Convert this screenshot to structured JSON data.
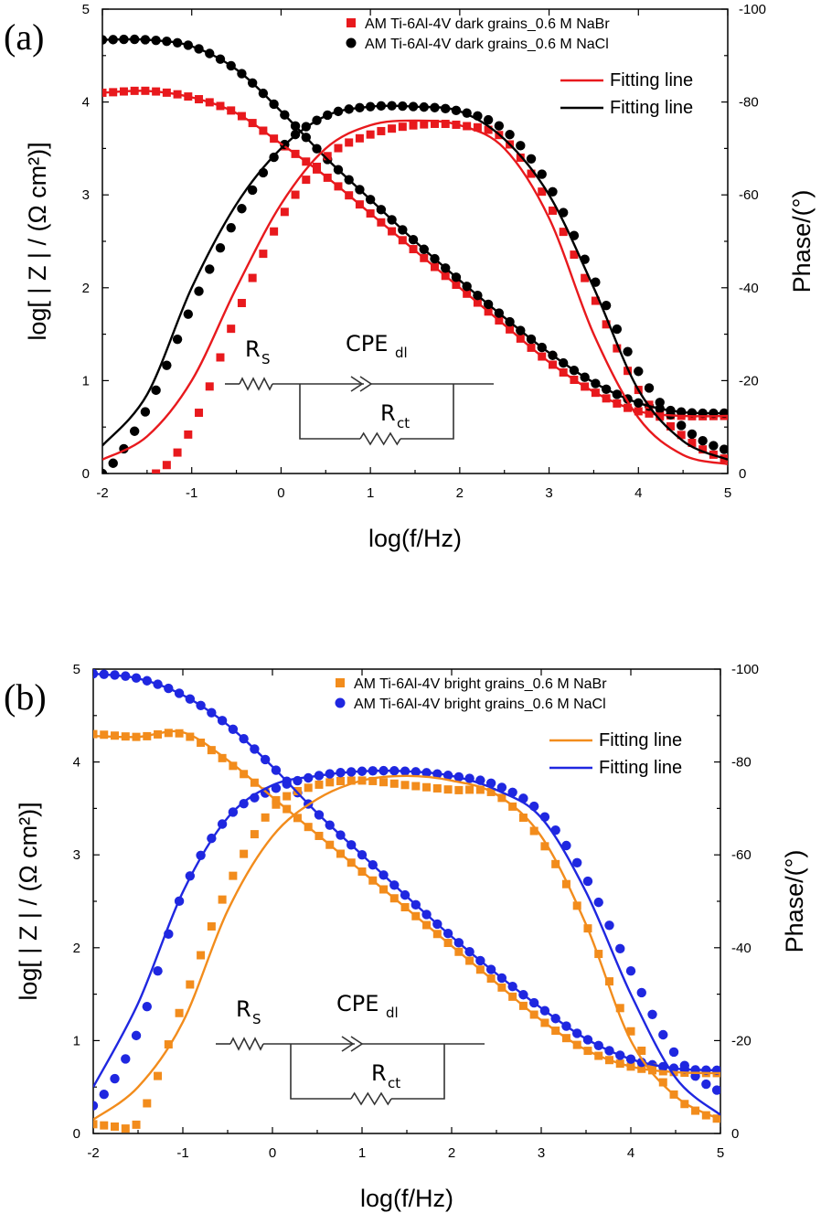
{
  "chart_data": [
    {
      "panel_label": "(a)",
      "type": "scatter",
      "xlabel": "log(f/Hz)",
      "ylabel_left": "log[ | Z | / (Ω cm²)]",
      "ylabel_right": "Phase/(°)",
      "xlim": [
        -2,
        5
      ],
      "ylim_left": [
        0,
        5
      ],
      "ylim_right": [
        0,
        -100
      ],
      "x_ticks": [
        "-2",
        "-1",
        "0",
        "1",
        "2",
        "3",
        "4",
        "5"
      ],
      "y_left_ticks": [
        "0",
        "1",
        "2",
        "3",
        "4",
        "5"
      ],
      "y_right_ticks": [
        "0",
        "-20",
        "-40",
        "-60",
        "-80",
        "-100"
      ],
      "legend": [
        {
          "label": "AM Ti-6Al-4V dark grains_0.6 M NaBr",
          "marker": "square",
          "color": "#e8191d"
        },
        {
          "label": "AM Ti-6Al-4V dark grains_0.6 M NaCl",
          "marker": "circle",
          "color": "#000000"
        },
        {
          "label": "Fitting line",
          "marker": "line",
          "color": "#e8191d"
        },
        {
          "label": "Fitting line",
          "marker": "line",
          "color": "#000000"
        }
      ],
      "series": [
        {
          "name": "NaBr |Z|",
          "axis": "left",
          "color": "#e8191d",
          "marker": "square",
          "x": [
            -2,
            -1.5,
            -1,
            -0.5,
            0,
            0.5,
            1,
            1.5,
            2,
            2.5,
            3,
            3.5,
            4,
            4.5,
            5
          ],
          "y": [
            4.1,
            4.12,
            4.05,
            3.88,
            3.55,
            3.2,
            2.8,
            2.4,
            2.0,
            1.6,
            1.2,
            0.88,
            0.67,
            0.62,
            0.62
          ]
        },
        {
          "name": "NaCl |Z|",
          "axis": "left",
          "color": "#000000",
          "marker": "circle",
          "x": [
            -2,
            -1.5,
            -1,
            -0.5,
            0,
            0.5,
            1,
            1.5,
            2,
            2.5,
            3,
            3.5,
            4,
            4.5,
            5
          ],
          "y": [
            4.67,
            4.67,
            4.6,
            4.35,
            3.9,
            3.4,
            2.95,
            2.5,
            2.08,
            1.68,
            1.3,
            0.98,
            0.76,
            0.66,
            0.65
          ]
        },
        {
          "name": "NaBr phase",
          "axis": "right",
          "color": "#e8191d",
          "marker": "square",
          "x": [
            -1.4,
            -1,
            -0.5,
            0,
            0.5,
            1,
            1.5,
            2,
            2.5,
            3,
            3.5,
            4,
            4.5,
            5
          ],
          "y": [
            0,
            -10,
            -34,
            -55,
            -68,
            -73,
            -75,
            -75,
            -72,
            -58,
            -38,
            -18,
            -8,
            -3
          ]
        },
        {
          "name": "NaCl phase",
          "axis": "right",
          "color": "#000000",
          "marker": "circle",
          "x": [
            -2,
            -1.5,
            -1,
            -0.5,
            0,
            0.5,
            1,
            1.5,
            2,
            2.5,
            3,
            3.5,
            4,
            4.5,
            5
          ],
          "y": [
            0,
            -14,
            -36,
            -55,
            -70,
            -77,
            -79,
            -79,
            -78,
            -74,
            -62,
            -42,
            -22,
            -10,
            -5
          ]
        },
        {
          "name": "NaBr |Z| fit",
          "axis": "left",
          "color": "#e8191d",
          "marker": "line",
          "x": [
            -2,
            -1.5,
            -1,
            -0.5,
            0,
            0.5,
            1,
            1.5,
            2,
            2.5,
            3,
            3.5,
            4,
            4.5,
            5
          ],
          "y": [
            4.1,
            4.12,
            4.05,
            3.88,
            3.55,
            3.2,
            2.8,
            2.4,
            2.0,
            1.6,
            1.2,
            0.88,
            0.67,
            0.62,
            0.62
          ]
        },
        {
          "name": "NaCl |Z| fit",
          "axis": "left",
          "color": "#000000",
          "marker": "line",
          "x": [
            -2,
            -1.5,
            -1,
            -0.5,
            0,
            0.5,
            1,
            1.5,
            2,
            2.5,
            3,
            3.5,
            4,
            4.5,
            5
          ],
          "y": [
            4.67,
            4.67,
            4.6,
            4.35,
            3.9,
            3.4,
            2.95,
            2.5,
            2.08,
            1.68,
            1.3,
            0.98,
            0.76,
            0.66,
            0.65
          ]
        },
        {
          "name": "NaBr phase fit",
          "axis": "right",
          "color": "#e8191d",
          "marker": "line",
          "x": [
            -2,
            -1.5,
            -1,
            -0.5,
            0,
            0.5,
            1,
            1.5,
            2,
            2.5,
            3,
            3.5,
            4,
            4.5,
            5
          ],
          "y": [
            -3,
            -8,
            -20,
            -40,
            -58,
            -70,
            -75,
            -76,
            -75,
            -70,
            -55,
            -30,
            -12,
            -4,
            -2
          ]
        },
        {
          "name": "NaCl phase fit",
          "axis": "right",
          "color": "#000000",
          "marker": "line",
          "x": [
            -2,
            -1.5,
            -1,
            -0.5,
            0,
            0.5,
            1,
            1.5,
            2,
            2.5,
            3,
            3.5,
            4,
            4.5,
            5
          ],
          "y": [
            -6,
            -17,
            -40,
            -58,
            -70,
            -77,
            -79,
            -79,
            -78,
            -72,
            -60,
            -40,
            -18,
            -7,
            -3
          ]
        }
      ],
      "circuit": {
        "rs": "R",
        "rs_sub": "S",
        "cpe": "CPE",
        "cpe_sub": "dl",
        "rct": "R",
        "rct_sub": "ct"
      }
    },
    {
      "panel_label": "(b)",
      "type": "scatter",
      "xlabel": "log(f/Hz)",
      "ylabel_left": "log[ | Z | / (Ω cm²)]",
      "ylabel_right": "Phase/(°)",
      "xlim": [
        -2,
        5
      ],
      "ylim_left": [
        0,
        5
      ],
      "ylim_right": [
        0,
        -100
      ],
      "x_ticks": [
        "-2",
        "-1",
        "0",
        "1",
        "2",
        "3",
        "4",
        "5"
      ],
      "y_left_ticks": [
        "0",
        "1",
        "2",
        "3",
        "4",
        "5"
      ],
      "y_right_ticks": [
        "0",
        "-20",
        "-40",
        "-60",
        "-80",
        "-100"
      ],
      "legend": [
        {
          "label": "AM Ti-6Al-4V bright grains_0.6 M NaBr",
          "marker": "square",
          "color": "#f28c1c"
        },
        {
          "label": "AM Ti-6Al-4V bright grains_0.6 M NaCl",
          "marker": "circle",
          "color": "#1f27e0"
        },
        {
          "label": "Fitting line",
          "marker": "line",
          "color": "#f28c1c"
        },
        {
          "label": "Fitting line",
          "marker": "line",
          "color": "#1f27e0"
        }
      ],
      "series": [
        {
          "name": "NaBr |Z|",
          "axis": "left",
          "color": "#f28c1c",
          "marker": "square",
          "x": [
            -2,
            -1.5,
            -1,
            -0.5,
            0,
            0.5,
            1,
            1.5,
            2,
            2.5,
            3,
            3.5,
            4,
            4.5,
            5
          ],
          "y": [
            4.3,
            4.27,
            4.3,
            4.0,
            3.62,
            3.22,
            2.82,
            2.42,
            2.02,
            1.62,
            1.22,
            0.9,
            0.72,
            0.66,
            0.65
          ]
        },
        {
          "name": "NaCl |Z|",
          "axis": "left",
          "color": "#1f27e0",
          "marker": "circle",
          "x": [
            -2,
            -1.5,
            -1,
            -0.5,
            0,
            0.5,
            1,
            1.5,
            2,
            2.5,
            3,
            3.5,
            4,
            4.5,
            5
          ],
          "y": [
            4.95,
            4.9,
            4.72,
            4.4,
            3.95,
            3.45,
            3.0,
            2.55,
            2.12,
            1.72,
            1.35,
            1.02,
            0.8,
            0.7,
            0.68
          ]
        },
        {
          "name": "NaBr phase",
          "axis": "right",
          "color": "#f28c1c",
          "marker": "square",
          "x": [
            -2,
            -1.7,
            -1.5,
            -1,
            -0.5,
            0,
            0.5,
            1,
            1.5,
            2,
            2.5,
            3,
            3.5,
            4,
            4.5,
            5
          ],
          "y": [
            -2,
            -1.5,
            -3,
            -28,
            -53,
            -70,
            -75,
            -76,
            -75,
            -74,
            -73,
            -63,
            -45,
            -22,
            -8,
            -3
          ]
        },
        {
          "name": "NaCl phase",
          "axis": "right",
          "color": "#1f27e0",
          "marker": "circle",
          "x": [
            -2,
            -1.5,
            -1,
            -0.5,
            0,
            0.5,
            1,
            1.5,
            2,
            2.5,
            3,
            3.5,
            4,
            4.5,
            5
          ],
          "y": [
            -6,
            -22,
            -52,
            -68,
            -74,
            -77,
            -78,
            -78,
            -77,
            -75,
            -69,
            -55,
            -35,
            -17,
            -9
          ]
        },
        {
          "name": "NaBr |Z| fit",
          "axis": "left",
          "color": "#f28c1c",
          "marker": "line",
          "x": [
            -2,
            -1.5,
            -1,
            -0.5,
            0,
            0.5,
            1,
            1.5,
            2,
            2.5,
            3,
            3.5,
            4,
            4.5,
            5
          ],
          "y": [
            4.28,
            4.27,
            4.32,
            4.02,
            3.62,
            3.22,
            2.82,
            2.42,
            2.02,
            1.62,
            1.22,
            0.9,
            0.72,
            0.66,
            0.65
          ]
        },
        {
          "name": "NaCl |Z| fit",
          "axis": "left",
          "color": "#1f27e0",
          "marker": "line",
          "x": [
            -2,
            -1.5,
            -1,
            -0.5,
            0,
            0.5,
            1,
            1.5,
            2,
            2.5,
            3,
            3.5,
            4,
            4.5,
            5
          ],
          "y": [
            4.95,
            4.9,
            4.72,
            4.4,
            3.95,
            3.45,
            3.0,
            2.55,
            2.12,
            1.72,
            1.35,
            1.02,
            0.8,
            0.7,
            0.68
          ]
        },
        {
          "name": "NaBr phase fit",
          "axis": "right",
          "color": "#f28c1c",
          "marker": "line",
          "x": [
            -2,
            -1.5,
            -1,
            -0.5,
            0,
            0.5,
            1,
            1.5,
            2,
            2.5,
            3,
            3.5,
            4,
            4.5,
            5
          ],
          "y": [
            -3,
            -10,
            -24,
            -48,
            -64,
            -72,
            -76,
            -77,
            -76,
            -73,
            -64,
            -45,
            -20,
            -8,
            -3
          ]
        },
        {
          "name": "NaCl phase fit",
          "axis": "right",
          "color": "#1f27e0",
          "marker": "line",
          "x": [
            -2,
            -1.5,
            -1,
            -0.5,
            0,
            0.5,
            1,
            1.5,
            2,
            2.5,
            3,
            3.5,
            4,
            4.5,
            5
          ],
          "y": [
            -10,
            -28,
            -52,
            -68,
            -75,
            -77,
            -78,
            -78,
            -77,
            -74,
            -68,
            -52,
            -30,
            -12,
            -4
          ]
        }
      ],
      "circuit": {
        "rs": "R",
        "rs_sub": "S",
        "cpe": "CPE",
        "cpe_sub": "dl",
        "rct": "R",
        "rct_sub": "ct"
      }
    }
  ]
}
